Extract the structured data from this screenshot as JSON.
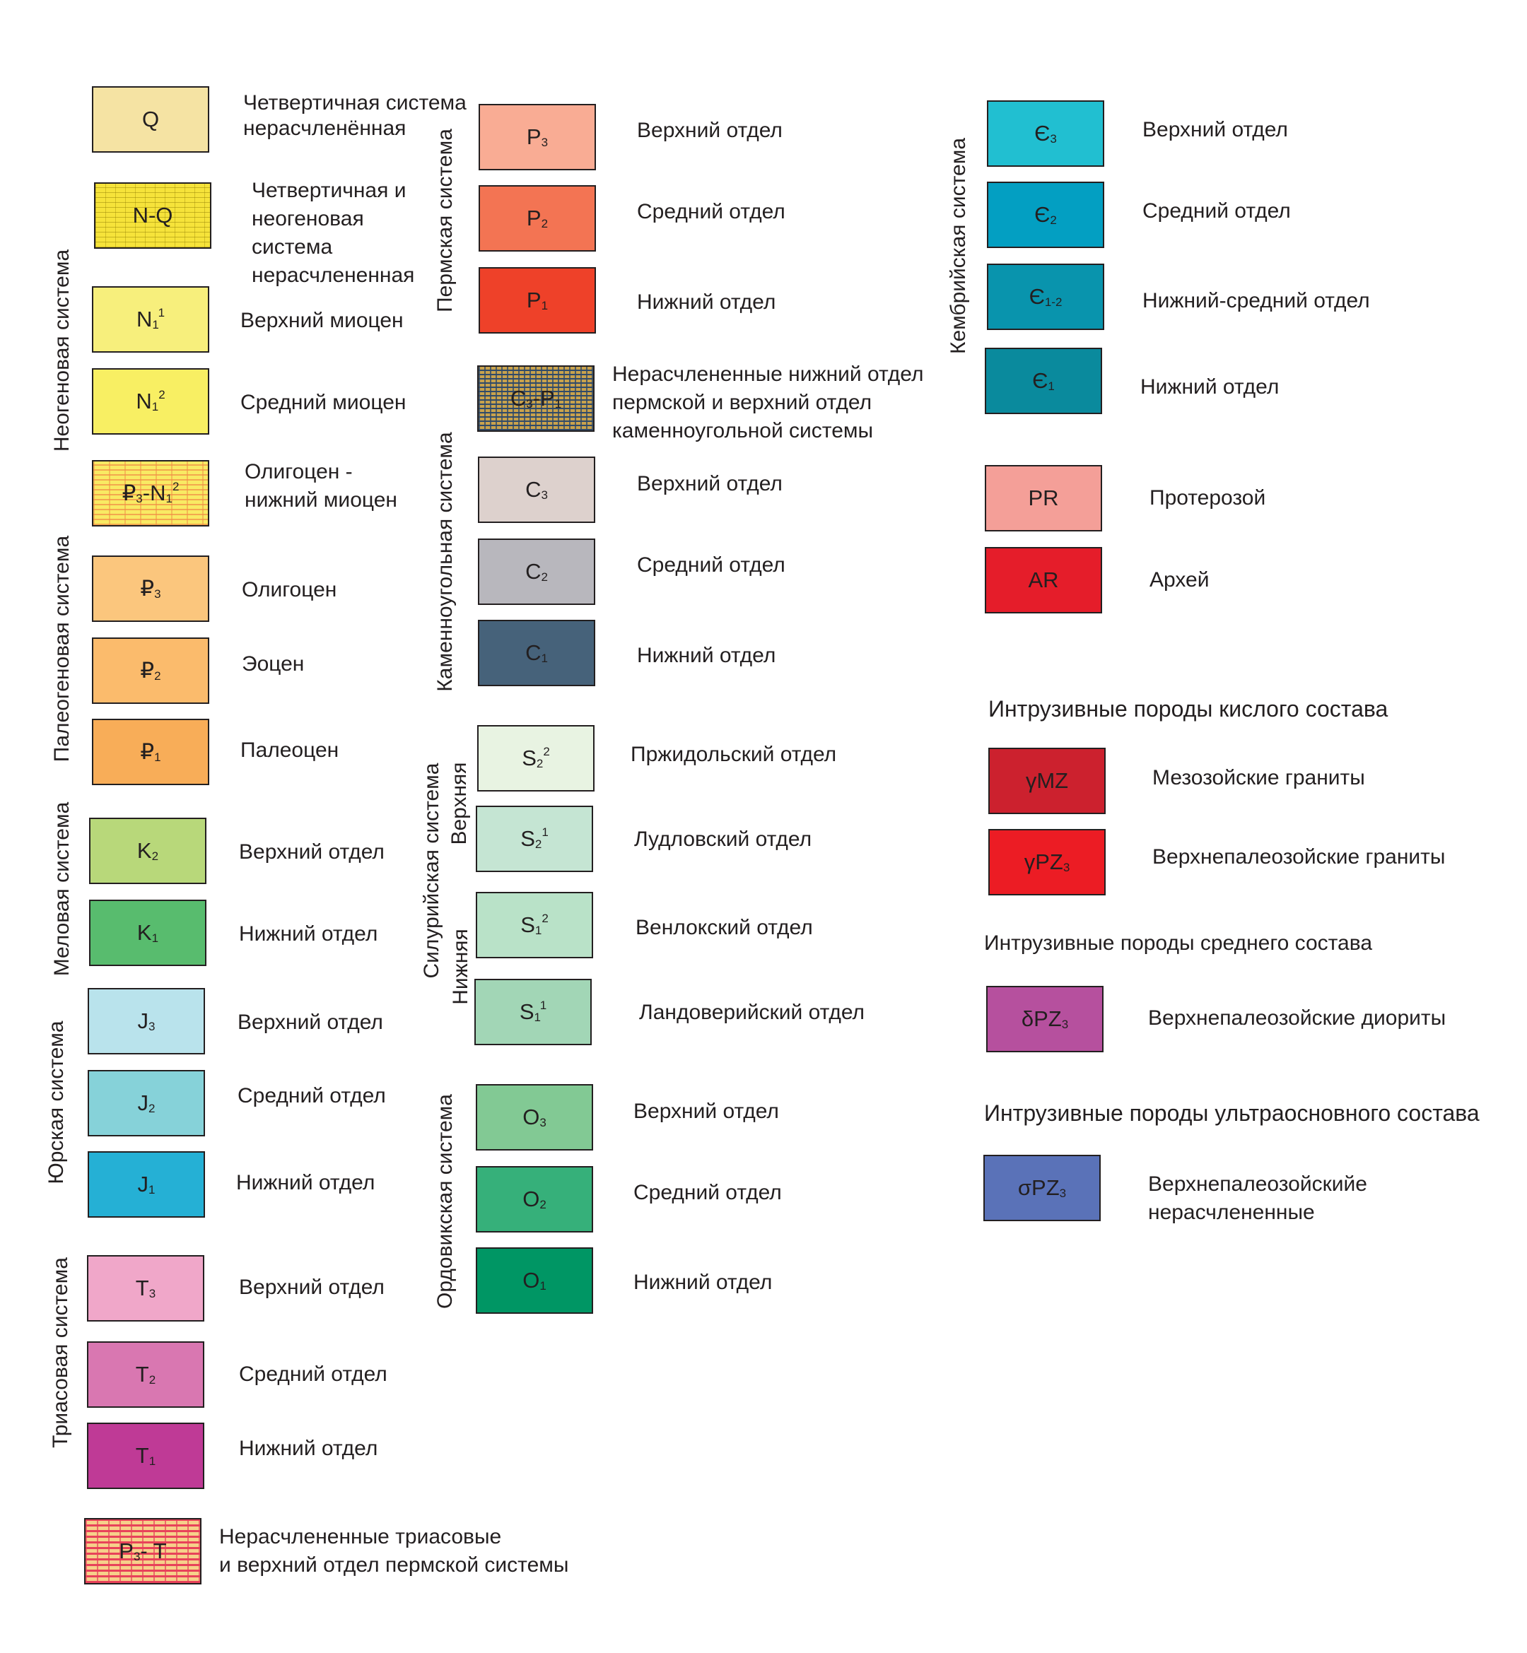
{
  "groups": {
    "neogene": "Неогеновая система",
    "paleogene": "Палеогеновая система",
    "cretaceous": "Меловая система",
    "jurassic": "Юрская система",
    "triassic": "Триасовая система",
    "permian": "Пермская система",
    "carboniferous": "Каменноугольная система",
    "silurian": "Силурийская система",
    "silurian_upper": "Верхняя",
    "silurian_lower": "Нижняя",
    "ordovician": "Ордовикская система",
    "cambrian": "Кембрийская система"
  },
  "headers": {
    "felsic": "Интрузивные породы кислого состава",
    "intermediate": "Интрузивные породы среднего состава",
    "ultramafic": "Интрузивные породы ультраосновного состава"
  },
  "units": {
    "q": {
      "base": "Q",
      "label1": "Четвертичная система",
      "label2": "нерасчленённая",
      "color": "#f5e3a3"
    },
    "nq": {
      "base": "N-Q",
      "label1": "Четвертичная и",
      "label2": "неогеновая",
      "label3": "система",
      "label4": "нерасчлененная",
      "color": "#f6e33a"
    },
    "n1_1": {
      "base": "N",
      "sub": "1",
      "sup": "1",
      "label": "Верхний миоцен",
      "color": "#f7ef7c"
    },
    "n1_2": {
      "base": "N",
      "sub": "1",
      "sup": "2",
      "label": "Средний миоцен",
      "color": "#f8ef63"
    },
    "pg3_n1": {
      "base": "₽",
      "sub": "3",
      "mid": "-N",
      "sub2": "1",
      "sup2": "2",
      "label1": "Олигоцен -",
      "label2": "нижний миоцен",
      "color": "#f9ea63"
    },
    "pg3": {
      "base": "₽",
      "sub": "3",
      "label": "Олигоцен",
      "color": "#fbc67d"
    },
    "pg2": {
      "base": "₽",
      "sub": "2",
      "label": "Эоцен",
      "color": "#fbbb6c"
    },
    "pg1": {
      "base": "₽",
      "sub": "1",
      "label": "Палеоцен",
      "color": "#f8ad58"
    },
    "k2": {
      "base": "K",
      "sub": "2",
      "label": "Верхний отдел",
      "color": "#b8d87a"
    },
    "k1": {
      "base": "K",
      "sub": "1",
      "label": "Нижний отдел",
      "color": "#58bc6e"
    },
    "j3": {
      "base": "J",
      "sub": "3",
      "label": "Верхний отдел",
      "color": "#b9e3ec"
    },
    "j2": {
      "base": "J",
      "sub": "2",
      "label": "Средний отдел",
      "color": "#86d2d9"
    },
    "j1": {
      "base": "J",
      "sub": "1",
      "label": "Нижний отдел",
      "color": "#25b0d5"
    },
    "t3": {
      "base": "T",
      "sub": "3",
      "label": "Верхний отдел",
      "color": "#f0a7c9"
    },
    "t2": {
      "base": "T",
      "sub": "2",
      "label": "Средний отдел",
      "color": "#d977b1"
    },
    "t1": {
      "base": "T",
      "sub": "1",
      "label": "Нижний отдел",
      "color": "#bf3a96"
    },
    "p3t": {
      "base": "P",
      "sub": "3",
      "mid": "- T",
      "label1": "Нерасчлененные триасовые",
      "label2": "и верхний отдел пермской системы",
      "color": "#f6d08a"
    },
    "p3": {
      "base": "P",
      "sub": "3",
      "label": "Верхний отдел",
      "color": "#f9ac94"
    },
    "p2": {
      "base": "P",
      "sub": "2",
      "label": "Средний отдел",
      "color": "#f37453"
    },
    "p1": {
      "base": "P",
      "sub": "1",
      "label": "Нижний отдел",
      "color": "#ee4129"
    },
    "c3p1": {
      "base": "C",
      "sub": "3",
      "mid": "-P",
      "sub2": "1",
      "label1": "Нерасчлененные нижний отдел",
      "label2": "пермской и верхний отдел",
      "label3": "каменноугольной системы",
      "color": "#c9a24c"
    },
    "c3": {
      "base": "C",
      "sub": "3",
      "label": "Верхний отдел",
      "color": "#ddd1cd"
    },
    "c2": {
      "base": "C",
      "sub": "2",
      "label": "Средний отдел",
      "color": "#b8b7bd"
    },
    "c1": {
      "base": "C",
      "sub": "1",
      "label": "Нижний отдел",
      "color": "#46627a"
    },
    "s2_2": {
      "base": "S",
      "sub": "2",
      "sup": "2",
      "label": "Пржидольский отдел",
      "color": "#e8f3e2"
    },
    "s2_1": {
      "base": "S",
      "sub": "2",
      "sup": "1",
      "label": "Лудловский отдел",
      "color": "#c5e5d3"
    },
    "s1_2": {
      "base": "S",
      "sub": "1",
      "sup": "2",
      "label": "Венлокский отдел",
      "color": "#b9e2c8"
    },
    "s1_1": {
      "base": "S",
      "sub": "1",
      "sup": "1",
      "label": "Ландоверийский отдел",
      "color": "#a2d6b6"
    },
    "o3": {
      "base": "O",
      "sub": "3",
      "label": "Верхний отдел",
      "color": "#82c994"
    },
    "o2": {
      "base": "O",
      "sub": "2",
      "label": "Средний отдел",
      "color": "#36b07a"
    },
    "o1": {
      "base": "O",
      "sub": "1",
      "label": "Нижний отдел",
      "color": "#009664"
    },
    "cm3": {
      "base": "Є",
      "sub": "3",
      "label": "Верхний отдел",
      "color": "#21bfd1"
    },
    "cm2": {
      "base": "Є",
      "sub": "2",
      "label": "Средний отдел",
      "color": "#039fc2"
    },
    "cm12": {
      "base": "Є",
      "sub": "1-2",
      "label": "Нижний-средний отдел",
      "color": "#0994ad"
    },
    "cm1": {
      "base": "Є",
      "sub": "1",
      "label": "Нижний отдел",
      "color": "#0a8a9d"
    },
    "pr": {
      "base": "PR",
      "label": "Протерозой",
      "color": "#f49f98"
    },
    "ar": {
      "base": "AR",
      "label": "Архей",
      "color": "#e51d2a"
    },
    "gmz": {
      "base": "γMZ",
      "label": "Мезозойские граниты",
      "color": "#cc212e"
    },
    "gpz3": {
      "base": "γPZ",
      "sub": "3",
      "label": "Верхнепалеозойские граниты",
      "color": "#ec1c24"
    },
    "dpz3": {
      "base": "δPZ",
      "sub": "3",
      "label": "Верхнепалеозойские диориты",
      "color": "#b6509e"
    },
    "spz3": {
      "base": "σPZ",
      "sub": "3",
      "label1": "Верхнепалеозойскийе",
      "label2": "нерасчлененные",
      "color": "#5a72b8"
    }
  }
}
